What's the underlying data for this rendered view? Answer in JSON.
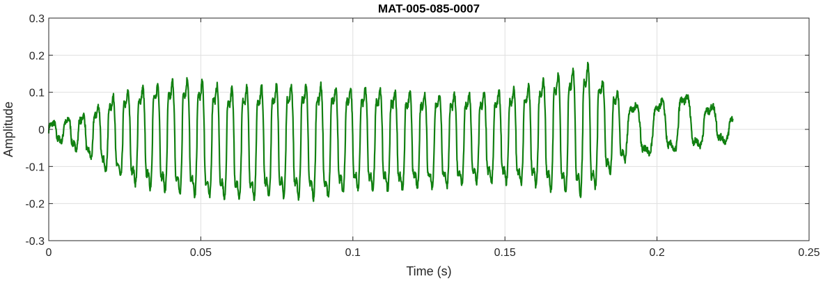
{
  "chart_data": {
    "type": "line",
    "title": "MAT-005-085-0007",
    "xlabel": "Time (s)",
    "ylabel": "Amplitude",
    "xlim": [
      0,
      0.25
    ],
    "ylim": [
      -0.3,
      0.3
    ],
    "xticks": [
      0,
      0.05,
      0.1,
      0.15,
      0.2,
      0.25
    ],
    "xtick_labels": [
      "0",
      "0.05",
      "0.1",
      "0.15",
      "0.2",
      "0.25"
    ],
    "yticks": [
      -0.3,
      -0.2,
      -0.1,
      0,
      0.1,
      0.2,
      0.3
    ],
    "ytick_labels": [
      "-0.3",
      "-0.2",
      "-0.1",
      "0",
      "0.1",
      "0.2",
      "0.3"
    ],
    "grid": true,
    "series": [
      {
        "color": "#118011",
        "duration_s": 0.225,
        "envelope_t": [
          0,
          0.005,
          0.013,
          0.02,
          0.03,
          0.045,
          0.06,
          0.075,
          0.09,
          0.1,
          0.115,
          0.13,
          0.14,
          0.15,
          0.16,
          0.167,
          0.173,
          0.178,
          0.182,
          0.19,
          0.195,
          0.2,
          0.208,
          0.215,
          0.22,
          0.225
        ],
        "envelope_max": [
          0.02,
          0.03,
          0.05,
          0.1,
          0.13,
          0.16,
          0.13,
          0.14,
          0.14,
          0.13,
          0.12,
          0.11,
          0.11,
          0.12,
          0.14,
          0.17,
          0.19,
          0.2,
          0.15,
          0.09,
          0.07,
          0.08,
          0.11,
          0.07,
          0.07,
          0.04
        ],
        "envelope_min": [
          -0.03,
          -0.04,
          -0.08,
          -0.13,
          -0.17,
          -0.2,
          -0.21,
          -0.2,
          -0.21,
          -0.18,
          -0.18,
          -0.17,
          -0.16,
          -0.16,
          -0.17,
          -0.19,
          -0.2,
          -0.2,
          -0.15,
          -0.09,
          -0.08,
          -0.07,
          -0.07,
          -0.05,
          -0.04,
          -0.04
        ]
      }
    ]
  }
}
